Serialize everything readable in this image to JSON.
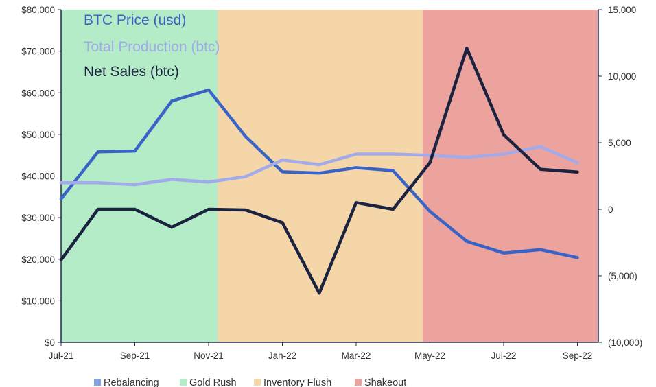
{
  "chart_data": {
    "type": "line",
    "categories": [
      "Jul-21",
      "Aug-21",
      "Sep-21",
      "Oct-21",
      "Nov-21",
      "Dec-21",
      "Jan-22",
      "Feb-22",
      "Mar-22",
      "Apr-22",
      "May-22",
      "Jun-22",
      "Jul-22",
      "Aug-22",
      "Sep-22"
    ],
    "x_tick_labels": [
      "Jul-21",
      "Sep-21",
      "Nov-21",
      "Jan-22",
      "Mar-22",
      "May-22",
      "Jul-22",
      "Sep-22"
    ],
    "x_tick_indices": [
      0,
      2,
      4,
      6,
      8,
      10,
      12,
      14
    ],
    "y_left": {
      "range": [
        0,
        80000
      ],
      "ticks": [
        0,
        10000,
        20000,
        30000,
        40000,
        50000,
        60000,
        70000,
        80000
      ],
      "tick_labels": [
        "$0",
        "$10,000",
        "$20,000",
        "$30,000",
        "$40,000",
        "$50,000",
        "$60,000",
        "$70,000",
        "$80,000"
      ]
    },
    "y_right": {
      "range": [
        -10000,
        15000
      ],
      "ticks": [
        -10000,
        -5000,
        0,
        5000,
        10000,
        15000
      ],
      "tick_labels": [
        "(10,000)",
        "(5,000)",
        "0",
        "5,000",
        "10,000",
        "15,000"
      ]
    },
    "series": [
      {
        "name": "BTC Price (usd)",
        "axis": "left",
        "color": "#3a63c7",
        "values": [
          34500,
          45800,
          46000,
          58000,
          60700,
          49500,
          41000,
          40700,
          42000,
          41300,
          31500,
          24300,
          21500,
          22300,
          20400
        ]
      },
      {
        "name": "Total Production (btc)",
        "axis": "right",
        "color": "#a3aaea",
        "values": [
          2000,
          2000,
          1850,
          2250,
          2050,
          2450,
          3700,
          3350,
          4150,
          4150,
          4050,
          3900,
          4150,
          4700,
          3500
        ]
      },
      {
        "name": "Net Sales (btc)",
        "axis": "right",
        "color": "#1c2340",
        "values": [
          -3800,
          0,
          0,
          -1350,
          0,
          -50,
          -1000,
          -6300,
          500,
          0,
          3500,
          12100,
          5600,
          3000,
          2800
        ]
      }
    ],
    "phases": [
      {
        "name": "Rebalancing",
        "color": "#7fa3e0",
        "start": null,
        "end": null
      },
      {
        "name": "Gold Rush",
        "color": "#b3ecc6",
        "start": -0.1,
        "end": 4.25
      },
      {
        "name": "Inventory Flush",
        "color": "#f4d6a9",
        "start": 4.25,
        "end": 9.8
      },
      {
        "name": "Shakeout",
        "color": "#eca39e",
        "start": 9.8,
        "end": 14.55
      }
    ],
    "legend_position": "top-left",
    "grid": false
  }
}
